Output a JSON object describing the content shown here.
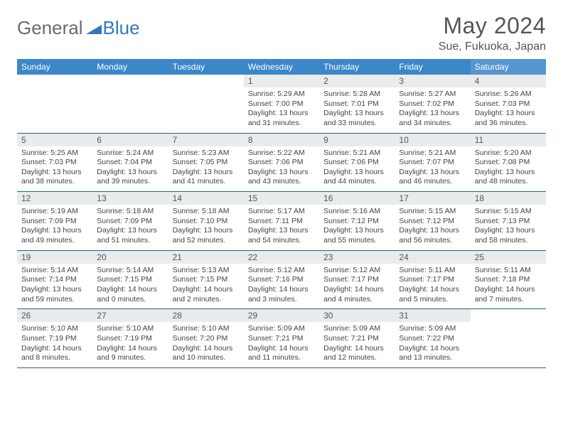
{
  "logo": {
    "text1": "General",
    "text2": "Blue"
  },
  "title": "May 2024",
  "location": "Sue, Fukuoka, Japan",
  "colors": {
    "header_bg": "#3b87c8",
    "header_sat_bg": "#5696cf",
    "daynum_bg": "#e9eceb",
    "border": "#2a5d8a",
    "logo_gray": "#6b6b6b",
    "logo_blue": "#2f78bd",
    "text": "#555"
  },
  "dayHeaders": [
    "Sunday",
    "Monday",
    "Tuesday",
    "Wednesday",
    "Thursday",
    "Friday",
    "Saturday"
  ],
  "weeks": [
    [
      {
        "empty": true
      },
      {
        "empty": true
      },
      {
        "empty": true
      },
      {
        "day": "1",
        "sunrise": "Sunrise: 5:29 AM",
        "sunset": "Sunset: 7:00 PM",
        "daylight": "Daylight: 13 hours and 31 minutes."
      },
      {
        "day": "2",
        "sunrise": "Sunrise: 5:28 AM",
        "sunset": "Sunset: 7:01 PM",
        "daylight": "Daylight: 13 hours and 33 minutes."
      },
      {
        "day": "3",
        "sunrise": "Sunrise: 5:27 AM",
        "sunset": "Sunset: 7:02 PM",
        "daylight": "Daylight: 13 hours and 34 minutes."
      },
      {
        "day": "4",
        "sunrise": "Sunrise: 5:26 AM",
        "sunset": "Sunset: 7:03 PM",
        "daylight": "Daylight: 13 hours and 36 minutes."
      }
    ],
    [
      {
        "day": "5",
        "sunrise": "Sunrise: 5:25 AM",
        "sunset": "Sunset: 7:03 PM",
        "daylight": "Daylight: 13 hours and 38 minutes."
      },
      {
        "day": "6",
        "sunrise": "Sunrise: 5:24 AM",
        "sunset": "Sunset: 7:04 PM",
        "daylight": "Daylight: 13 hours and 39 minutes."
      },
      {
        "day": "7",
        "sunrise": "Sunrise: 5:23 AM",
        "sunset": "Sunset: 7:05 PM",
        "daylight": "Daylight: 13 hours and 41 minutes."
      },
      {
        "day": "8",
        "sunrise": "Sunrise: 5:22 AM",
        "sunset": "Sunset: 7:06 PM",
        "daylight": "Daylight: 13 hours and 43 minutes."
      },
      {
        "day": "9",
        "sunrise": "Sunrise: 5:21 AM",
        "sunset": "Sunset: 7:06 PM",
        "daylight": "Daylight: 13 hours and 44 minutes."
      },
      {
        "day": "10",
        "sunrise": "Sunrise: 5:21 AM",
        "sunset": "Sunset: 7:07 PM",
        "daylight": "Daylight: 13 hours and 46 minutes."
      },
      {
        "day": "11",
        "sunrise": "Sunrise: 5:20 AM",
        "sunset": "Sunset: 7:08 PM",
        "daylight": "Daylight: 13 hours and 48 minutes."
      }
    ],
    [
      {
        "day": "12",
        "sunrise": "Sunrise: 5:19 AM",
        "sunset": "Sunset: 7:09 PM",
        "daylight": "Daylight: 13 hours and 49 minutes."
      },
      {
        "day": "13",
        "sunrise": "Sunrise: 5:18 AM",
        "sunset": "Sunset: 7:09 PM",
        "daylight": "Daylight: 13 hours and 51 minutes."
      },
      {
        "day": "14",
        "sunrise": "Sunrise: 5:18 AM",
        "sunset": "Sunset: 7:10 PM",
        "daylight": "Daylight: 13 hours and 52 minutes."
      },
      {
        "day": "15",
        "sunrise": "Sunrise: 5:17 AM",
        "sunset": "Sunset: 7:11 PM",
        "daylight": "Daylight: 13 hours and 54 minutes."
      },
      {
        "day": "16",
        "sunrise": "Sunrise: 5:16 AM",
        "sunset": "Sunset: 7:12 PM",
        "daylight": "Daylight: 13 hours and 55 minutes."
      },
      {
        "day": "17",
        "sunrise": "Sunrise: 5:15 AM",
        "sunset": "Sunset: 7:12 PM",
        "daylight": "Daylight: 13 hours and 56 minutes."
      },
      {
        "day": "18",
        "sunrise": "Sunrise: 5:15 AM",
        "sunset": "Sunset: 7:13 PM",
        "daylight": "Daylight: 13 hours and 58 minutes."
      }
    ],
    [
      {
        "day": "19",
        "sunrise": "Sunrise: 5:14 AM",
        "sunset": "Sunset: 7:14 PM",
        "daylight": "Daylight: 13 hours and 59 minutes."
      },
      {
        "day": "20",
        "sunrise": "Sunrise: 5:14 AM",
        "sunset": "Sunset: 7:15 PM",
        "daylight": "Daylight: 14 hours and 0 minutes."
      },
      {
        "day": "21",
        "sunrise": "Sunrise: 5:13 AM",
        "sunset": "Sunset: 7:15 PM",
        "daylight": "Daylight: 14 hours and 2 minutes."
      },
      {
        "day": "22",
        "sunrise": "Sunrise: 5:12 AM",
        "sunset": "Sunset: 7:16 PM",
        "daylight": "Daylight: 14 hours and 3 minutes."
      },
      {
        "day": "23",
        "sunrise": "Sunrise: 5:12 AM",
        "sunset": "Sunset: 7:17 PM",
        "daylight": "Daylight: 14 hours and 4 minutes."
      },
      {
        "day": "24",
        "sunrise": "Sunrise: 5:11 AM",
        "sunset": "Sunset: 7:17 PM",
        "daylight": "Daylight: 14 hours and 5 minutes."
      },
      {
        "day": "25",
        "sunrise": "Sunrise: 5:11 AM",
        "sunset": "Sunset: 7:18 PM",
        "daylight": "Daylight: 14 hours and 7 minutes."
      }
    ],
    [
      {
        "day": "26",
        "sunrise": "Sunrise: 5:10 AM",
        "sunset": "Sunset: 7:19 PM",
        "daylight": "Daylight: 14 hours and 8 minutes."
      },
      {
        "day": "27",
        "sunrise": "Sunrise: 5:10 AM",
        "sunset": "Sunset: 7:19 PM",
        "daylight": "Daylight: 14 hours and 9 minutes."
      },
      {
        "day": "28",
        "sunrise": "Sunrise: 5:10 AM",
        "sunset": "Sunset: 7:20 PM",
        "daylight": "Daylight: 14 hours and 10 minutes."
      },
      {
        "day": "29",
        "sunrise": "Sunrise: 5:09 AM",
        "sunset": "Sunset: 7:21 PM",
        "daylight": "Daylight: 14 hours and 11 minutes."
      },
      {
        "day": "30",
        "sunrise": "Sunrise: 5:09 AM",
        "sunset": "Sunset: 7:21 PM",
        "daylight": "Daylight: 14 hours and 12 minutes."
      },
      {
        "day": "31",
        "sunrise": "Sunrise: 5:09 AM",
        "sunset": "Sunset: 7:22 PM",
        "daylight": "Daylight: 14 hours and 13 minutes."
      },
      {
        "empty": true
      }
    ]
  ]
}
